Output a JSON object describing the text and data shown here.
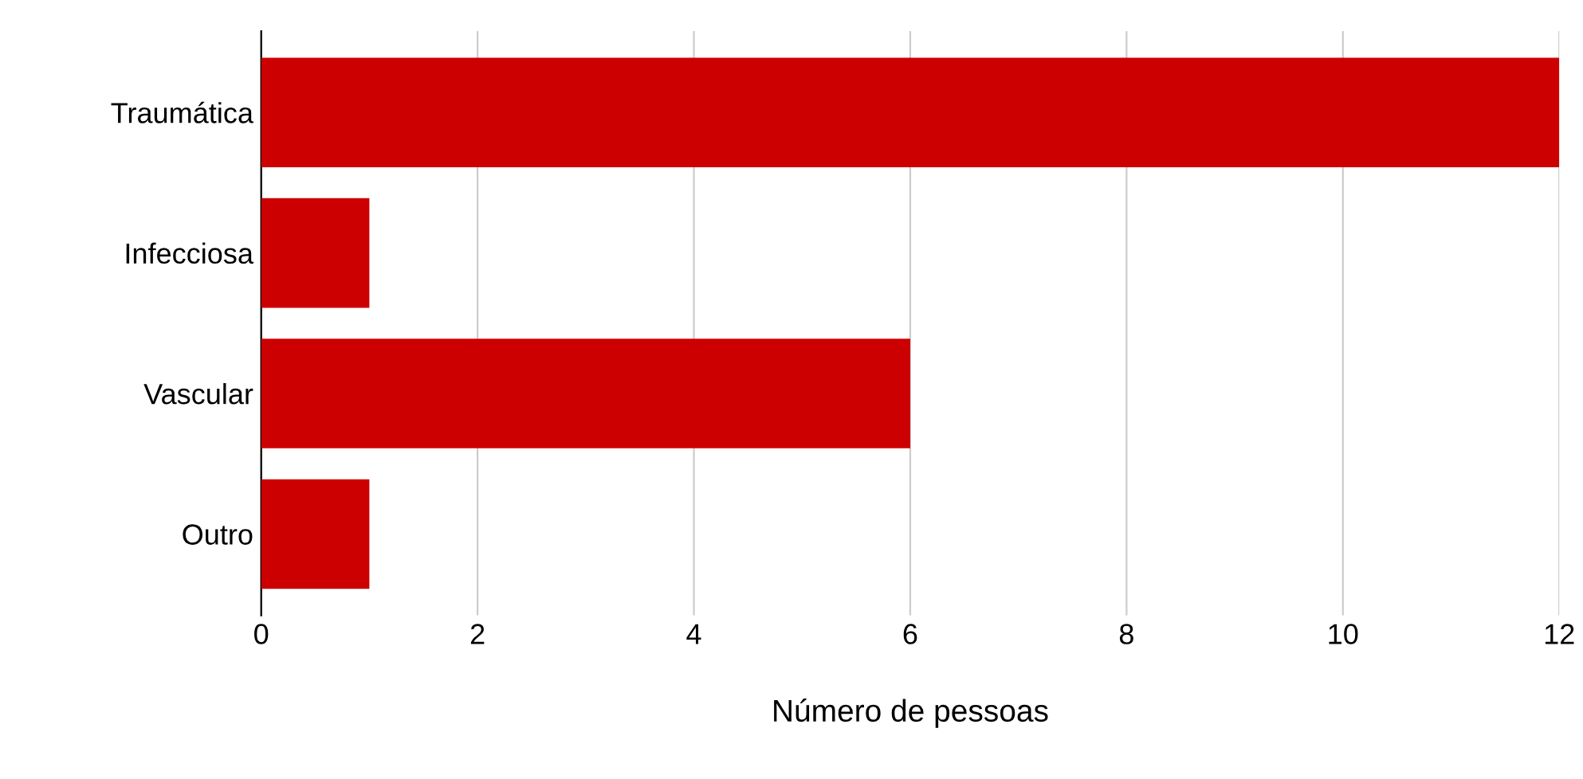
{
  "chart_data": {
    "type": "bar",
    "orientation": "horizontal",
    "xlabel": "Número de pessoas",
    "categories": [
      "Traumática",
      "Infecciosa",
      "Vascular",
      "Outro"
    ],
    "values": [
      12,
      1,
      6,
      1
    ],
    "color": "#cc0000",
    "xlim": [
      0,
      12
    ],
    "xticks": [
      0,
      2,
      4,
      6,
      8,
      10,
      12
    ],
    "grid": "x"
  }
}
